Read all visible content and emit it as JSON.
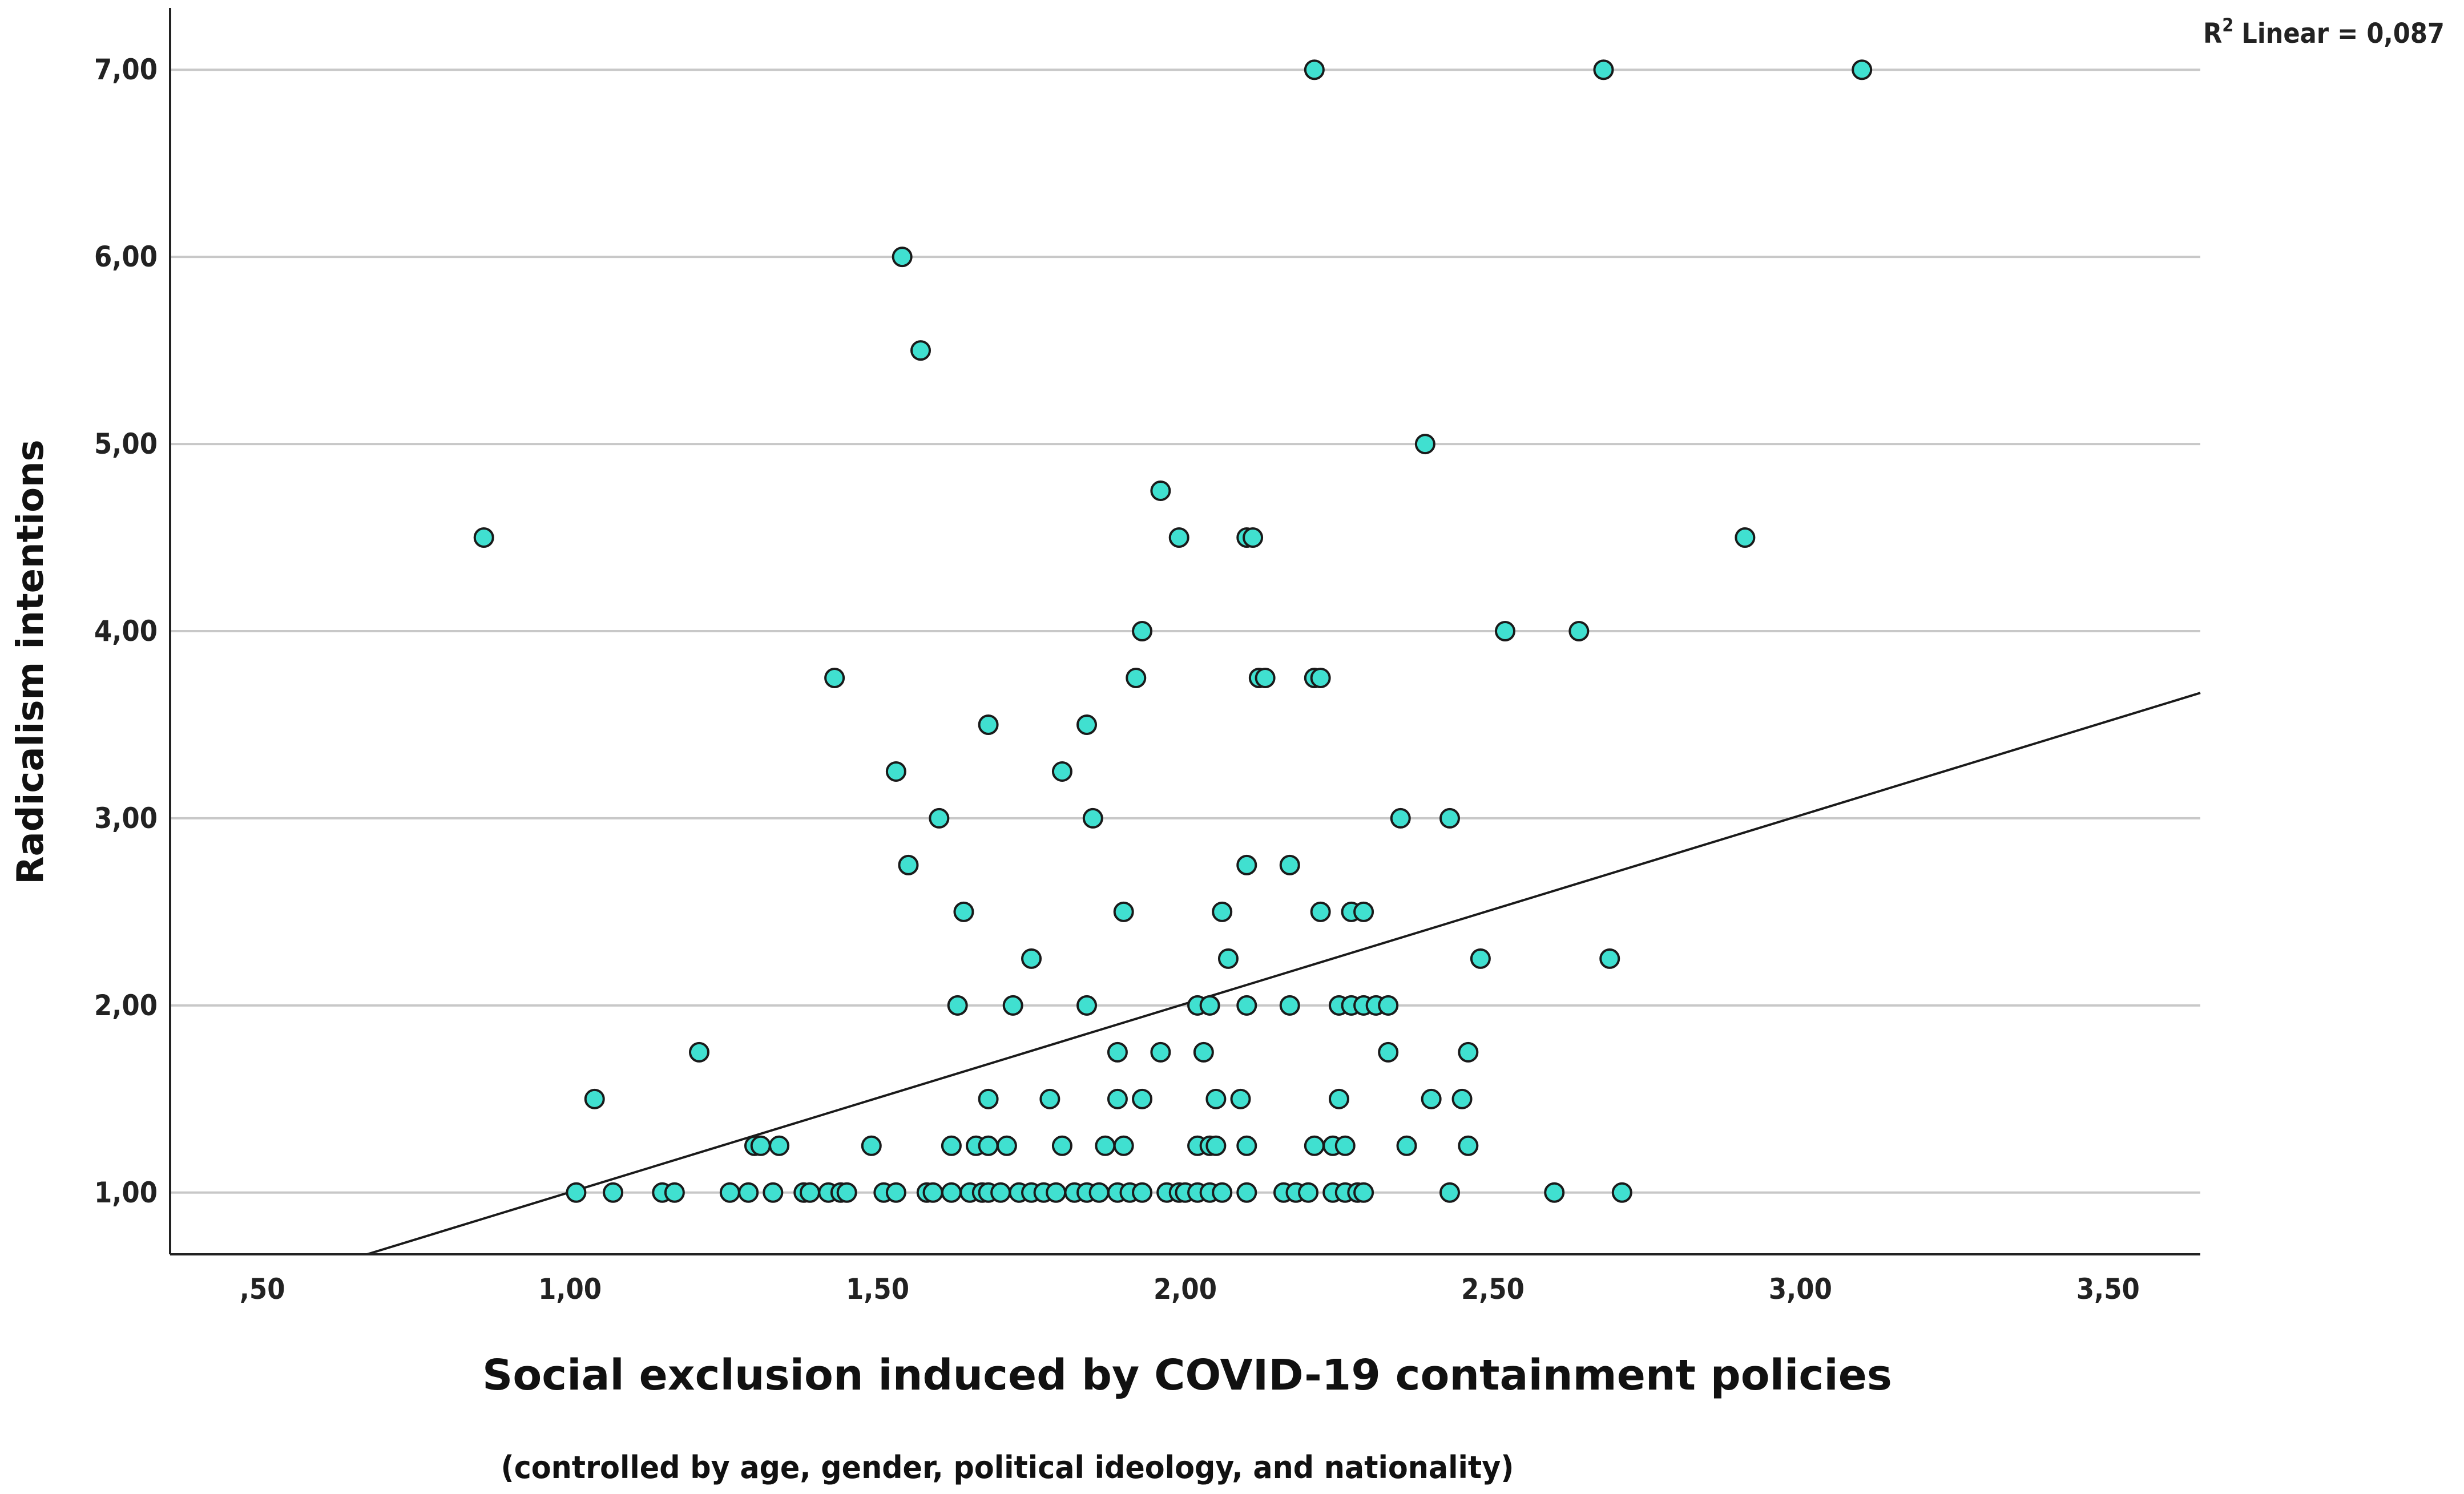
{
  "chart_data": {
    "type": "scatter",
    "title": "",
    "xlabel": "Social exclusion induced by COVID-19 containment policies",
    "xlabel_sub": "(controlled by age, gender, political ideology, and nationality)",
    "ylabel": "Radicalism intentions",
    "xlim": [
      0.35,
      3.65
    ],
    "ylim": [
      0.67,
      7.33
    ],
    "x_ticks": [
      0.5,
      1.0,
      1.5,
      2.0,
      2.5,
      3.0,
      3.5
    ],
    "x_tick_labels": [
      ",50",
      "1,00",
      "1,50",
      "2,00",
      "2,50",
      "3,00",
      "3,50"
    ],
    "y_ticks": [
      1,
      2,
      3,
      4,
      5,
      6,
      7
    ],
    "y_tick_labels": [
      "1,00",
      "2,00",
      "3,00",
      "4,00",
      "5,00",
      "6,00",
      "7,00"
    ],
    "grid": "horizontal",
    "r2_label": "Linear = 0,087",
    "r2_prefix": "R",
    "r2_sup": "2",
    "fit_line": {
      "x": [
        0.67,
        3.65
      ],
      "y": [
        0.67,
        3.67
      ]
    },
    "marker_color": "#40E0D0",
    "marker_edge": "#1a1a1a",
    "points": [
      {
        "x": 0.86,
        "y": 4.5
      },
      {
        "x": 2.21,
        "y": 7.0
      },
      {
        "x": 2.68,
        "y": 7.0
      },
      {
        "x": 3.1,
        "y": 7.0
      },
      {
        "x": 1.54,
        "y": 6.0
      },
      {
        "x": 1.57,
        "y": 5.5
      },
      {
        "x": 2.39,
        "y": 5.0
      },
      {
        "x": 1.96,
        "y": 4.75
      },
      {
        "x": 1.99,
        "y": 4.5
      },
      {
        "x": 2.1,
        "y": 4.5
      },
      {
        "x": 2.11,
        "y": 4.5
      },
      {
        "x": 2.91,
        "y": 4.5
      },
      {
        "x": 1.93,
        "y": 4.0
      },
      {
        "x": 2.52,
        "y": 4.0
      },
      {
        "x": 2.64,
        "y": 4.0
      },
      {
        "x": 1.43,
        "y": 3.75
      },
      {
        "x": 1.92,
        "y": 3.75
      },
      {
        "x": 2.12,
        "y": 3.75
      },
      {
        "x": 2.13,
        "y": 3.75
      },
      {
        "x": 2.21,
        "y": 3.75
      },
      {
        "x": 2.22,
        "y": 3.75
      },
      {
        "x": 1.68,
        "y": 3.5
      },
      {
        "x": 1.84,
        "y": 3.5
      },
      {
        "x": 1.53,
        "y": 3.25
      },
      {
        "x": 1.8,
        "y": 3.25
      },
      {
        "x": 1.6,
        "y": 3.0
      },
      {
        "x": 1.85,
        "y": 3.0
      },
      {
        "x": 2.35,
        "y": 3.0
      },
      {
        "x": 2.43,
        "y": 3.0
      },
      {
        "x": 1.55,
        "y": 2.75
      },
      {
        "x": 2.1,
        "y": 2.75
      },
      {
        "x": 2.17,
        "y": 2.75
      },
      {
        "x": 1.64,
        "y": 2.5
      },
      {
        "x": 1.9,
        "y": 2.5
      },
      {
        "x": 2.06,
        "y": 2.5
      },
      {
        "x": 2.22,
        "y": 2.5
      },
      {
        "x": 2.27,
        "y": 2.5
      },
      {
        "x": 2.29,
        "y": 2.5
      },
      {
        "x": 1.75,
        "y": 2.25
      },
      {
        "x": 2.07,
        "y": 2.25
      },
      {
        "x": 2.48,
        "y": 2.25
      },
      {
        "x": 2.69,
        "y": 2.25
      },
      {
        "x": 1.63,
        "y": 2.0
      },
      {
        "x": 1.72,
        "y": 2.0
      },
      {
        "x": 1.84,
        "y": 2.0
      },
      {
        "x": 2.02,
        "y": 2.0
      },
      {
        "x": 2.04,
        "y": 2.0
      },
      {
        "x": 2.1,
        "y": 2.0
      },
      {
        "x": 2.17,
        "y": 2.0
      },
      {
        "x": 2.25,
        "y": 2.0
      },
      {
        "x": 2.27,
        "y": 2.0
      },
      {
        "x": 2.29,
        "y": 2.0
      },
      {
        "x": 2.31,
        "y": 2.0
      },
      {
        "x": 2.33,
        "y": 2.0
      },
      {
        "x": 1.21,
        "y": 1.75
      },
      {
        "x": 1.89,
        "y": 1.75
      },
      {
        "x": 1.96,
        "y": 1.75
      },
      {
        "x": 2.03,
        "y": 1.75
      },
      {
        "x": 2.33,
        "y": 1.75
      },
      {
        "x": 2.46,
        "y": 1.75
      },
      {
        "x": 1.04,
        "y": 1.5
      },
      {
        "x": 1.68,
        "y": 1.5
      },
      {
        "x": 1.78,
        "y": 1.5
      },
      {
        "x": 1.89,
        "y": 1.5
      },
      {
        "x": 1.93,
        "y": 1.5
      },
      {
        "x": 2.05,
        "y": 1.5
      },
      {
        "x": 2.09,
        "y": 1.5
      },
      {
        "x": 2.25,
        "y": 1.5
      },
      {
        "x": 2.4,
        "y": 1.5
      },
      {
        "x": 2.45,
        "y": 1.5
      },
      {
        "x": 1.3,
        "y": 1.25
      },
      {
        "x": 1.31,
        "y": 1.25
      },
      {
        "x": 1.34,
        "y": 1.25
      },
      {
        "x": 1.49,
        "y": 1.25
      },
      {
        "x": 1.62,
        "y": 1.25
      },
      {
        "x": 1.66,
        "y": 1.25
      },
      {
        "x": 1.68,
        "y": 1.25
      },
      {
        "x": 1.71,
        "y": 1.25
      },
      {
        "x": 1.8,
        "y": 1.25
      },
      {
        "x": 1.87,
        "y": 1.25
      },
      {
        "x": 1.9,
        "y": 1.25
      },
      {
        "x": 2.02,
        "y": 1.25
      },
      {
        "x": 2.04,
        "y": 1.25
      },
      {
        "x": 2.05,
        "y": 1.25
      },
      {
        "x": 2.1,
        "y": 1.25
      },
      {
        "x": 2.21,
        "y": 1.25
      },
      {
        "x": 2.24,
        "y": 1.25
      },
      {
        "x": 2.26,
        "y": 1.25
      },
      {
        "x": 2.36,
        "y": 1.25
      },
      {
        "x": 2.46,
        "y": 1.25
      },
      {
        "x": 1.01,
        "y": 1.0
      },
      {
        "x": 1.07,
        "y": 1.0
      },
      {
        "x": 1.15,
        "y": 1.0
      },
      {
        "x": 1.17,
        "y": 1.0
      },
      {
        "x": 1.26,
        "y": 1.0
      },
      {
        "x": 1.29,
        "y": 1.0
      },
      {
        "x": 1.33,
        "y": 1.0
      },
      {
        "x": 1.38,
        "y": 1.0
      },
      {
        "x": 1.39,
        "y": 1.0
      },
      {
        "x": 1.42,
        "y": 1.0
      },
      {
        "x": 1.44,
        "y": 1.0
      },
      {
        "x": 1.45,
        "y": 1.0
      },
      {
        "x": 1.51,
        "y": 1.0
      },
      {
        "x": 1.53,
        "y": 1.0
      },
      {
        "x": 1.58,
        "y": 1.0
      },
      {
        "x": 1.59,
        "y": 1.0
      },
      {
        "x": 1.62,
        "y": 1.0
      },
      {
        "x": 1.65,
        "y": 1.0
      },
      {
        "x": 1.67,
        "y": 1.0
      },
      {
        "x": 1.68,
        "y": 1.0
      },
      {
        "x": 1.7,
        "y": 1.0
      },
      {
        "x": 1.73,
        "y": 1.0
      },
      {
        "x": 1.75,
        "y": 1.0
      },
      {
        "x": 1.77,
        "y": 1.0
      },
      {
        "x": 1.79,
        "y": 1.0
      },
      {
        "x": 1.82,
        "y": 1.0
      },
      {
        "x": 1.84,
        "y": 1.0
      },
      {
        "x": 1.86,
        "y": 1.0
      },
      {
        "x": 1.89,
        "y": 1.0
      },
      {
        "x": 1.91,
        "y": 1.0
      },
      {
        "x": 1.93,
        "y": 1.0
      },
      {
        "x": 1.97,
        "y": 1.0
      },
      {
        "x": 1.99,
        "y": 1.0
      },
      {
        "x": 2.0,
        "y": 1.0
      },
      {
        "x": 2.02,
        "y": 1.0
      },
      {
        "x": 2.04,
        "y": 1.0
      },
      {
        "x": 2.06,
        "y": 1.0
      },
      {
        "x": 2.1,
        "y": 1.0
      },
      {
        "x": 2.16,
        "y": 1.0
      },
      {
        "x": 2.18,
        "y": 1.0
      },
      {
        "x": 2.2,
        "y": 1.0
      },
      {
        "x": 2.24,
        "y": 1.0
      },
      {
        "x": 2.26,
        "y": 1.0
      },
      {
        "x": 2.28,
        "y": 1.0
      },
      {
        "x": 2.29,
        "y": 1.0
      },
      {
        "x": 2.43,
        "y": 1.0
      },
      {
        "x": 2.6,
        "y": 1.0
      },
      {
        "x": 2.71,
        "y": 1.0
      }
    ]
  }
}
